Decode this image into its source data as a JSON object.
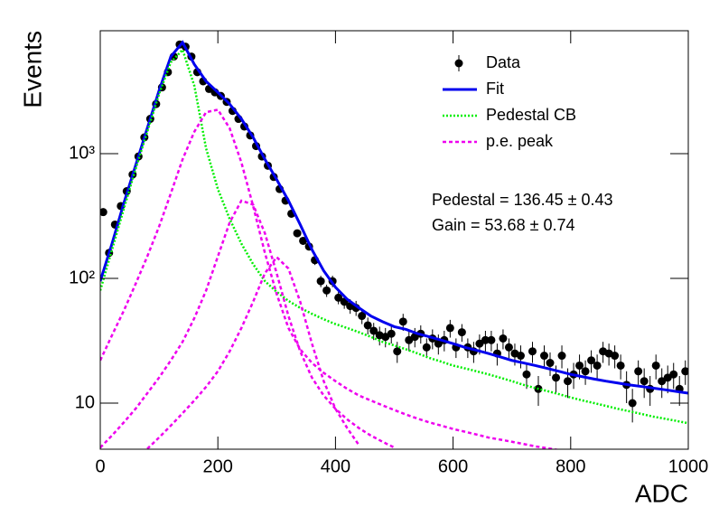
{
  "chart_data": {
    "type": "line",
    "log_y": true,
    "xlabel": "ADC",
    "ylabel": "Events",
    "xlim": [
      0,
      1000
    ],
    "ylim": [
      4.27,
      9670
    ],
    "xticks": [
      0,
      200,
      400,
      600,
      800,
      1000
    ],
    "yticks": [
      10,
      {
        "value": 100,
        "label": "10²"
      },
      {
        "value": 1000,
        "label": "10³"
      }
    ],
    "legend": "upper right",
    "annotations": [
      "Pedestal = 136.45 ± 0.43",
      "Gain = 53.68 ± 0.74"
    ],
    "series": [
      {
        "name": "Data",
        "style": "points",
        "color": "#000000",
        "x": [
          5,
          15,
          25,
          35,
          45,
          55,
          65,
          75,
          85,
          95,
          105,
          115,
          125,
          135,
          145,
          155,
          165,
          175,
          185,
          195,
          205,
          215,
          225,
          235,
          245,
          255,
          265,
          275,
          285,
          295,
          305,
          315,
          325,
          335,
          345,
          355,
          365,
          375,
          385,
          395,
          405,
          415,
          425,
          435,
          445,
          455,
          465,
          475,
          485,
          495,
          505,
          515,
          525,
          535,
          545,
          555,
          565,
          575,
          585,
          595,
          605,
          615,
          625,
          635,
          645,
          655,
          665,
          675,
          685,
          695,
          705,
          715,
          725,
          735,
          745,
          755,
          765,
          775,
          785,
          795,
          805,
          815,
          825,
          835,
          845,
          855,
          865,
          875,
          885,
          895,
          905,
          915,
          925,
          935,
          945,
          955,
          965,
          975,
          985,
          995
        ],
        "values": [
          340,
          160,
          270,
          380,
          500,
          680,
          950,
          1350,
          1900,
          2500,
          3400,
          4500,
          6000,
          7500,
          7200,
          6000,
          4500,
          3800,
          3300,
          3100,
          2900,
          2600,
          2200,
          1900,
          1650,
          1400,
          1150,
          950,
          800,
          650,
          520,
          420,
          330,
          230,
          200,
          180,
          140,
          95,
          80,
          95,
          70,
          65,
          60,
          58,
          50,
          42,
          38,
          35,
          34,
          36,
          26,
          45,
          32,
          34,
          36,
          28,
          33,
          30,
          32,
          40,
          28,
          37,
          28,
          26,
          30,
          32,
          32,
          25,
          33,
          28,
          25,
          24,
          17,
          26,
          13,
          24,
          21,
          16,
          24,
          15,
          17,
          20,
          18,
          22,
          20,
          26,
          25,
          24,
          20,
          14,
          10,
          18,
          15,
          13,
          20,
          15,
          16,
          17,
          13,
          18
        ],
        "errors": [
          18,
          13,
          16,
          19,
          22,
          26,
          31,
          37,
          44,
          50,
          58,
          67,
          77,
          87,
          85,
          77,
          67,
          62,
          57,
          56,
          54,
          51,
          47,
          44,
          41,
          37,
          34,
          31,
          28,
          25,
          23,
          20,
          18,
          15,
          14,
          13,
          12,
          10,
          9,
          10,
          8,
          8,
          8,
          8,
          7,
          6.5,
          6,
          6,
          6,
          6,
          5,
          7,
          6,
          6,
          6,
          5,
          6,
          5.5,
          6,
          6.5,
          5,
          6,
          5,
          5,
          5.5,
          6,
          6,
          5,
          6,
          5,
          5,
          5,
          4,
          5,
          3.5,
          5,
          4.5,
          4,
          5,
          4,
          4,
          4.5,
          4,
          4.5,
          4.5,
          5,
          5,
          5,
          4.5,
          4,
          3,
          4,
          4,
          3.5,
          4.5,
          4,
          4,
          4,
          3.5,
          4
        ]
      },
      {
        "name": "Fit",
        "style": "solid",
        "color": "#0000ee",
        "x": [
          0,
          20,
          40,
          60,
          80,
          100,
          120,
          140,
          160,
          180,
          200,
          220,
          240,
          260,
          280,
          300,
          320,
          340,
          360,
          380,
          400,
          420,
          440,
          460,
          480,
          500,
          520,
          540,
          560,
          580,
          600,
          620,
          640,
          660,
          680,
          700,
          720,
          740,
          760,
          780,
          800,
          820,
          840,
          860,
          880,
          900,
          920,
          940,
          960,
          980,
          1000
        ],
        "values": [
          95,
          190,
          400,
          800,
          1600,
          3200,
          6000,
          7800,
          5200,
          3800,
          3100,
          2500,
          1900,
          1350,
          900,
          620,
          420,
          270,
          170,
          115,
          85,
          68,
          58,
          50,
          45,
          41,
          39,
          36,
          34,
          32,
          30,
          28,
          26.5,
          25,
          23.5,
          22,
          21,
          20,
          19,
          18,
          17,
          16.3,
          15.6,
          15,
          14.5,
          14,
          13.6,
          13.2,
          12.8,
          12.4,
          12
        ]
      },
      {
        "name": "Pedestal CB",
        "style": "dotted",
        "color": "#00ee00",
        "x": [
          0,
          20,
          40,
          60,
          80,
          100,
          120,
          140,
          160,
          180,
          200,
          220,
          240,
          260,
          280,
          300,
          320,
          340,
          360,
          380,
          400,
          420,
          440,
          460,
          480,
          500,
          520,
          540,
          560,
          580,
          600,
          620,
          640,
          660,
          680,
          700,
          720,
          740,
          760,
          780,
          800,
          820,
          840,
          860,
          880,
          900,
          920,
          940,
          960,
          980,
          1000
        ],
        "values": [
          80,
          170,
          360,
          750,
          1500,
          3000,
          5400,
          6800,
          3500,
          1100,
          520,
          300,
          190,
          130,
          95,
          78,
          66,
          58,
          52,
          47,
          43,
          40,
          37,
          34,
          31,
          29,
          27,
          25,
          23,
          21.5,
          20,
          19,
          18,
          17,
          16,
          15,
          14,
          13.2,
          12.5,
          11.8,
          11.1,
          10.5,
          10,
          9.5,
          9,
          8.6,
          8.2,
          7.8,
          7.5,
          7.2,
          6.9
        ]
      },
      {
        "name": "p.e. peak",
        "style": "dashed",
        "color": "#ee00ee",
        "x": [
          0,
          20,
          40,
          60,
          80,
          100,
          120,
          140,
          160,
          180,
          200,
          220,
          240,
          260,
          280,
          300,
          320,
          340,
          360,
          380,
          400,
          420,
          440,
          460,
          480,
          500,
          520,
          540,
          560,
          580,
          600,
          620,
          640,
          660,
          680,
          700,
          720,
          740,
          760,
          780
        ],
        "values": [
          22,
          35,
          55,
          90,
          150,
          260,
          480,
          900,
          1500,
          2150,
          2250,
          1600,
          850,
          380,
          160,
          75,
          40,
          27,
          21,
          17.5,
          15,
          13,
          11.5,
          10.5,
          9.6,
          8.8,
          8.1,
          7.5,
          7,
          6.6,
          6.2,
          5.9,
          5.6,
          5.3,
          5.1,
          4.9,
          4.7,
          4.5,
          4.35,
          4.2
        ]
      },
      {
        "style": "dashed",
        "color": "#ee00ee",
        "x": [
          0,
          20,
          40,
          60,
          80,
          100,
          120,
          140,
          160,
          180,
          200,
          220,
          240,
          260,
          280,
          300,
          320,
          340,
          360,
          380,
          400,
          420,
          440,
          460,
          480,
          500
        ],
        "values": [
          4.4,
          5.5,
          7,
          9,
          12,
          16,
          22,
          31,
          48,
          80,
          150,
          280,
          420,
          390,
          230,
          110,
          50,
          26,
          16,
          11.5,
          9,
          7.4,
          6.3,
          5.5,
          4.9,
          4.4
        ]
      },
      {
        "style": "dashed",
        "color": "#ee00ee",
        "x": [
          80,
          100,
          120,
          140,
          160,
          180,
          200,
          220,
          240,
          260,
          280,
          300,
          320,
          340,
          360,
          380,
          400,
          420,
          440
        ],
        "values": [
          4.3,
          5.3,
          6.6,
          8.3,
          10.5,
          13.5,
          18,
          26,
          40,
          65,
          110,
          148,
          120,
          65,
          30,
          15,
          9,
          6.3,
          4.6
        ]
      }
    ]
  }
}
